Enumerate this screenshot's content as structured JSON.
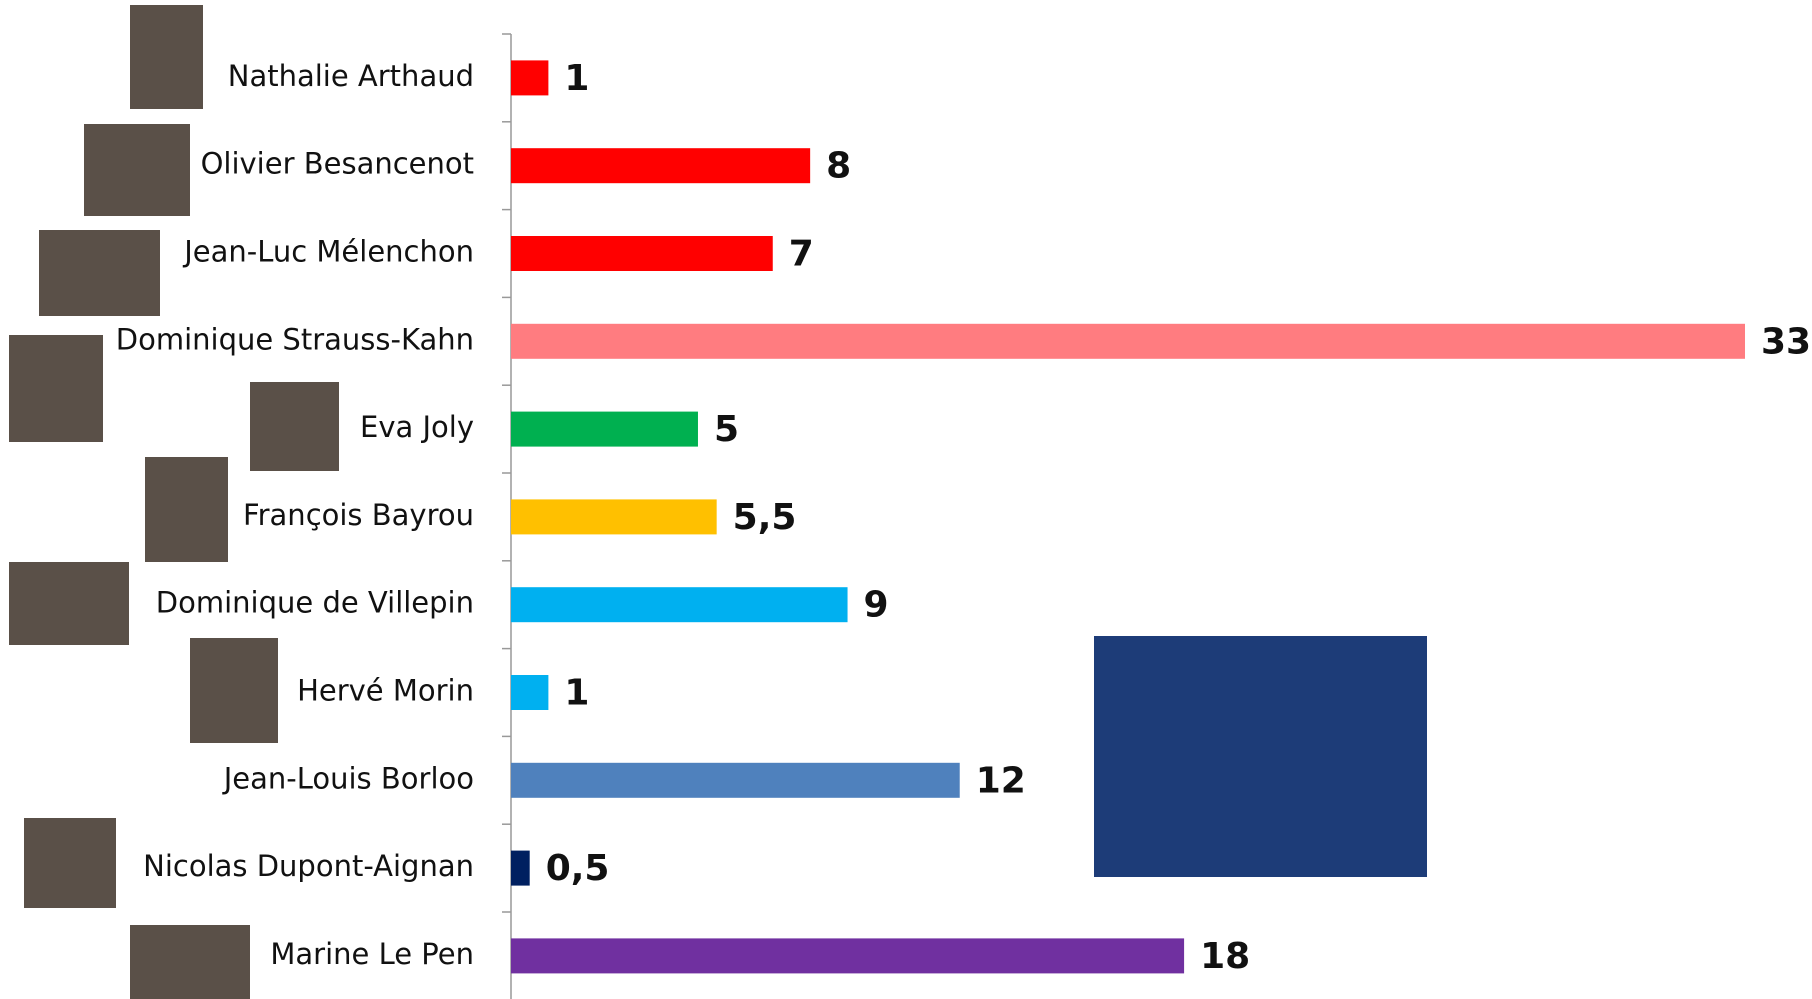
{
  "chart_data": {
    "type": "hbar",
    "categories": [
      "Nathalie Arthaud",
      "Olivier Besancenot",
      "Jean-Luc Mélenchon",
      "Dominique Strauss-Kahn",
      "Eva Joly",
      "François Bayrou",
      "Dominique de Villepin",
      "Hervé Morin",
      "Jean-Louis Borloo",
      "Nicolas Dupont-Aignan",
      "Marine Le Pen"
    ],
    "values": [
      1,
      8,
      7,
      33,
      5,
      5.5,
      9,
      1,
      12,
      0.5,
      18
    ],
    "value_labels": [
      "1",
      "8",
      "7",
      "33",
      "5",
      "5,5",
      "9",
      "1",
      "12",
      "0,5",
      "18"
    ],
    "colors": [
      "#ff0000",
      "#ff0000",
      "#ff0000",
      "#ff7c80",
      "#00b050",
      "#ffc000",
      "#00b0f0",
      "#00b0f0",
      "#4f81bd",
      "#002060",
      "#7030a0"
    ]
  }
}
